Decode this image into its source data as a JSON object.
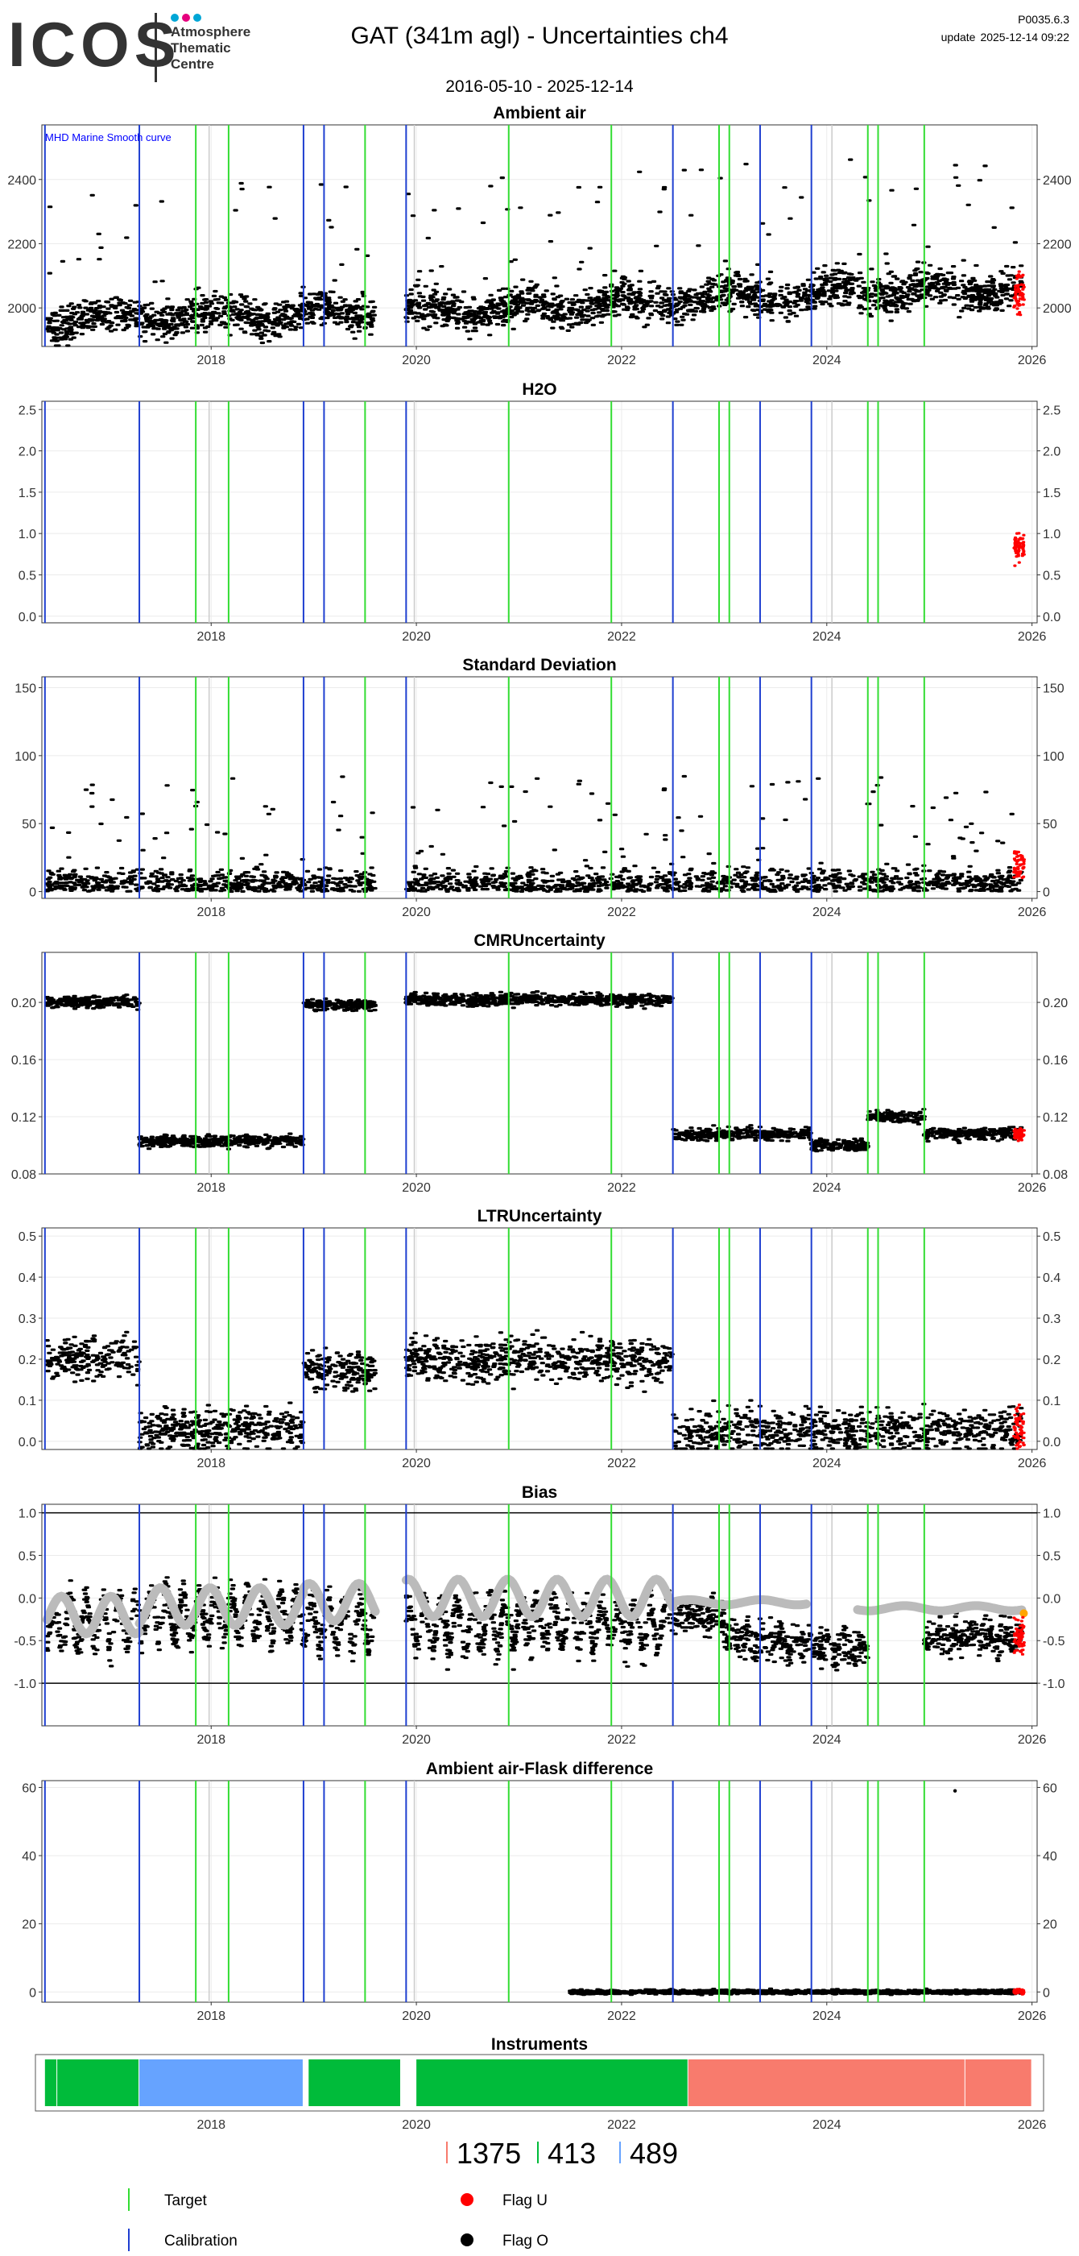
{
  "header": {
    "logo_text": "ICOS",
    "logo_subtitle": [
      "Atmosphere",
      "Thematic",
      "Centre"
    ],
    "logo_dot_colors": [
      "#00a6d6",
      "#e6007e",
      "#00a6d6"
    ],
    "title": "GAT  (341m agl) - Uncertainties ch4",
    "date_range": "2016-05-10 - 2025-12-14",
    "version": "P0035.6.3",
    "update_label": "update",
    "update_value": "2025-12-14 09:22"
  },
  "colors": {
    "data": "#000000",
    "flag_u": "#ff0000",
    "calibration": "#1f3fd0",
    "target": "#33dd33",
    "gray_line": "#cccccc",
    "bias_smooth": "#bbbbbb",
    "orange": "#ffa500",
    "instrument_green": "#00bb3a",
    "instrument_blue": "#66a3ff",
    "instrument_red": "#f87b6d",
    "annotation": "#0000ff"
  },
  "events": {
    "calibration": [
      2016.38,
      2017.3,
      2018.9,
      2019.1,
      2019.9,
      2022.5,
      2023.35,
      2023.85
    ],
    "target": [
      2017.85,
      2018.17,
      2019.5,
      2020.9,
      2021.9,
      2022.95,
      2023.05,
      2024.4,
      2024.5,
      2024.95
    ],
    "gray": [
      2017.98,
      2019.98,
      2024.05
    ]
  },
  "chart_data": [
    {
      "type": "scatter",
      "title": "Ambient air",
      "annotation": "MHD Marine Smooth curve",
      "xlim": [
        2016.35,
        2026.05
      ],
      "ylim": [
        1880,
        2570
      ],
      "yticks": [
        "2000",
        "2200",
        "2400"
      ],
      "ytick_values": [
        2000,
        2200,
        2400
      ],
      "xticks": [
        "2018",
        "2020",
        "2022",
        "2024",
        "2026"
      ],
      "xtick_values": [
        2018,
        2020,
        2022,
        2024,
        2026
      ],
      "trend": [
        [
          2016.4,
          1960
        ],
        [
          2017.3,
          1970
        ],
        [
          2019.0,
          1985
        ],
        [
          2020.0,
          1990
        ],
        [
          2021.0,
          2000
        ],
        [
          2022.0,
          2015
        ],
        [
          2023.0,
          2035
        ],
        [
          2024.0,
          2045
        ],
        [
          2025.0,
          2055
        ],
        [
          2025.9,
          2060
        ]
      ],
      "spread": 55,
      "spikes": 130,
      "gaps": [
        [
          2019.6,
          2019.9
        ]
      ]
    },
    {
      "type": "scatter",
      "title": "H2O",
      "xlim": [
        2016.35,
        2026.05
      ],
      "ylim": [
        -0.08,
        2.6
      ],
      "yticks": [
        "0.0",
        "0.5",
        "1.0",
        "1.5",
        "2.0",
        "2.5"
      ],
      "ytick_values": [
        0.0,
        0.5,
        1.0,
        1.5,
        2.0,
        2.5
      ],
      "xticks": [
        "2018",
        "2020",
        "2022",
        "2024",
        "2026"
      ],
      "xtick_values": [
        2018,
        2020,
        2022,
        2024,
        2026
      ],
      "seasonal": {
        "mean": 1.05,
        "amp": 0.55,
        "phase": 0.55
      },
      "spread": 0.18,
      "gaps": [
        [
          2017.3,
          2018.9
        ],
        [
          2019.75,
          2019.95
        ]
      ]
    },
    {
      "type": "scatter",
      "title": "Standard Deviation",
      "xlim": [
        2016.35,
        2026.05
      ],
      "ylim": [
        -5,
        158
      ],
      "yticks": [
        "0",
        "50",
        "100",
        "150"
      ],
      "ytick_values": [
        0,
        50,
        100,
        150
      ],
      "xticks": [
        "2018",
        "2020",
        "2022",
        "2024",
        "2026"
      ],
      "xtick_values": [
        2018,
        2020,
        2022,
        2024,
        2026
      ],
      "base": 6,
      "spread": 10,
      "spikes": 220,
      "gaps": [
        [
          2019.6,
          2019.9
        ]
      ]
    },
    {
      "type": "scatter",
      "title": "CMRUncertainty",
      "xlim": [
        2016.35,
        2026.05
      ],
      "ylim": [
        0.08,
        0.235
      ],
      "yticks": [
        "0.08",
        "0.12",
        "0.16",
        "0.20"
      ],
      "ytick_values": [
        0.08,
        0.12,
        0.16,
        0.2
      ],
      "xticks": [
        "2018",
        "2020",
        "2022",
        "2024",
        "2026"
      ],
      "xtick_values": [
        2018,
        2020,
        2022,
        2024,
        2026
      ],
      "segments": [
        [
          2016.4,
          2017.3,
          0.2
        ],
        [
          2017.3,
          2018.9,
          0.103
        ],
        [
          2018.9,
          2019.6,
          0.198
        ],
        [
          2019.9,
          2022.5,
          0.202
        ],
        [
          2022.5,
          2023.85,
          0.108
        ],
        [
          2023.85,
          2024.4,
          0.1
        ],
        [
          2024.4,
          2024.95,
          0.12
        ],
        [
          2024.95,
          2025.9,
          0.108
        ]
      ],
      "spread": 0.004,
      "gaps": [
        [
          2019.6,
          2019.9
        ]
      ]
    },
    {
      "type": "scatter",
      "title": "LTRUncertainty",
      "xlim": [
        2016.35,
        2026.05
      ],
      "ylim": [
        -0.02,
        0.52
      ],
      "yticks": [
        "0.0",
        "0.1",
        "0.2",
        "0.3",
        "0.4",
        "0.5"
      ],
      "ytick_values": [
        0.0,
        0.1,
        0.2,
        0.3,
        0.4,
        0.5
      ],
      "xticks": [
        "2018",
        "2020",
        "2022",
        "2024",
        "2026"
      ],
      "xtick_values": [
        2018,
        2020,
        2022,
        2024,
        2026
      ],
      "segments": [
        [
          2016.4,
          2017.3,
          0.2
        ],
        [
          2017.3,
          2018.9,
          0.03
        ],
        [
          2018.9,
          2019.6,
          0.17
        ],
        [
          2019.9,
          2022.5,
          0.2
        ],
        [
          2022.5,
          2025.9,
          0.025
        ]
      ],
      "spread": 0.05,
      "gaps": [
        [
          2019.6,
          2019.9
        ]
      ]
    },
    {
      "type": "scatter",
      "title": "Bias",
      "xlim": [
        2016.35,
        2026.05
      ],
      "ylim": [
        -1.5,
        1.1
      ],
      "yticks": [
        "-1.0",
        "-0.5",
        "0.0",
        "0.5",
        "1.0"
      ],
      "ytick_values": [
        -1.0,
        -0.5,
        0.0,
        0.5,
        1.0
      ],
      "xticks": [
        "2018",
        "2020",
        "2022",
        "2024",
        "2026"
      ],
      "xtick_values": [
        2018,
        2020,
        2022,
        2024,
        2026
      ],
      "hlines": [
        -1.0,
        1.0
      ],
      "segments": [
        [
          2016.4,
          2017.3,
          -0.3
        ],
        [
          2017.3,
          2018.9,
          -0.2
        ],
        [
          2018.9,
          2019.6,
          -0.3
        ],
        [
          2019.9,
          2022.5,
          -0.3
        ],
        [
          2022.5,
          2023.0,
          -0.2
        ],
        [
          2023.0,
          2023.85,
          -0.5
        ],
        [
          2023.85,
          2024.4,
          -0.6
        ],
        [
          2024.95,
          2025.9,
          -0.45
        ]
      ],
      "spread": 0.2,
      "smooth": [
        [
          2016.4,
          2017.3,
          -0.2
        ],
        [
          2017.3,
          2018.9,
          -0.1
        ],
        [
          2018.9,
          2019.6,
          -0.05
        ],
        [
          2019.9,
          2022.5,
          0.0
        ],
        [
          2022.5,
          2023.8,
          -0.05
        ],
        [
          2024.3,
          2025.9,
          -0.12
        ]
      ],
      "gaps": [
        [
          2019.6,
          2019.9
        ],
        [
          2024.4,
          2024.95
        ]
      ]
    },
    {
      "type": "scatter",
      "title": "Ambient air-Flask difference",
      "xlim": [
        2016.35,
        2026.05
      ],
      "ylim": [
        -3,
        62
      ],
      "yticks": [
        "0",
        "20",
        "40",
        "60"
      ],
      "ytick_values": [
        0,
        20,
        40,
        60
      ],
      "xticks": [
        "2018",
        "2020",
        "2022",
        "2024",
        "2026"
      ],
      "xtick_values": [
        2018,
        2020,
        2022,
        2024,
        2026
      ],
      "segments": [
        [
          2021.5,
          2025.9,
          0
        ]
      ],
      "spread": 0.6,
      "outlier": [
        2025.25,
        59
      ]
    }
  ],
  "instruments": {
    "title": "Instruments",
    "xlim": [
      2016.35,
      2026.05
    ],
    "xticks": [
      "2018",
      "2020",
      "2022",
      "2024",
      "2026"
    ],
    "xtick_values": [
      2018,
      2020,
      2022,
      2024,
      2026
    ],
    "blocks": [
      {
        "start": 2016.38,
        "end": 2016.5,
        "color": "green"
      },
      {
        "start": 2016.5,
        "end": 2017.3,
        "color": "green"
      },
      {
        "start": 2017.3,
        "end": 2018.9,
        "color": "blue"
      },
      {
        "start": 2018.95,
        "end": 2019.85,
        "color": "green"
      },
      {
        "start": 2020.0,
        "end": 2022.65,
        "color": "green"
      },
      {
        "start": 2022.65,
        "end": 2025.35,
        "color": "red"
      },
      {
        "start": 2025.35,
        "end": 2026.0,
        "color": "red"
      }
    ],
    "counts": [
      {
        "value": "1375",
        "color": "red"
      },
      {
        "value": "413",
        "color": "green"
      },
      {
        "value": "489",
        "color": "blue"
      }
    ]
  },
  "legend": [
    {
      "label": "Target",
      "symbol": "vline",
      "color": "target"
    },
    {
      "label": "Flag U",
      "symbol": "dot",
      "color": "flag_u"
    },
    {
      "label": "Calibration",
      "symbol": "vline",
      "color": "calibration"
    },
    {
      "label": "Flag O",
      "symbol": "dot",
      "color": "data"
    }
  ]
}
